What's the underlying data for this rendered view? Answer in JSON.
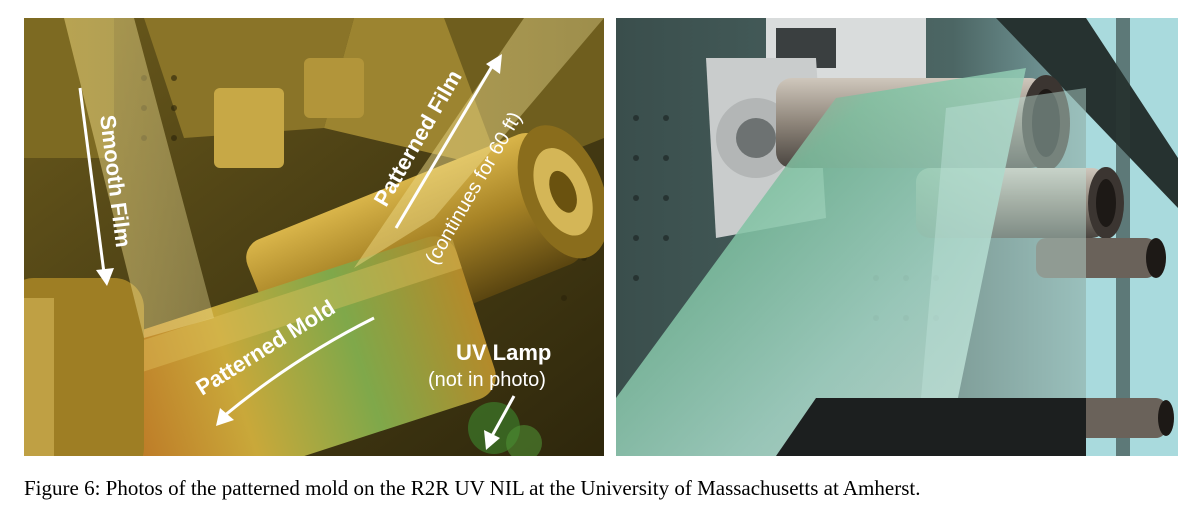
{
  "figure": {
    "left_photo": {
      "annotations": {
        "smooth_film": "Smooth Film",
        "patterned_film": "Patterned Film",
        "continues": "(continues for 60 ft)",
        "patterned_mold": "Patterned Mold",
        "uv_lamp": "UV Lamp",
        "not_in_photo": "(not in photo)"
      }
    },
    "caption": "Figure 6: Photos of the patterned mold on the R2R UV NIL at the University of Massachusetts at Amherst."
  }
}
